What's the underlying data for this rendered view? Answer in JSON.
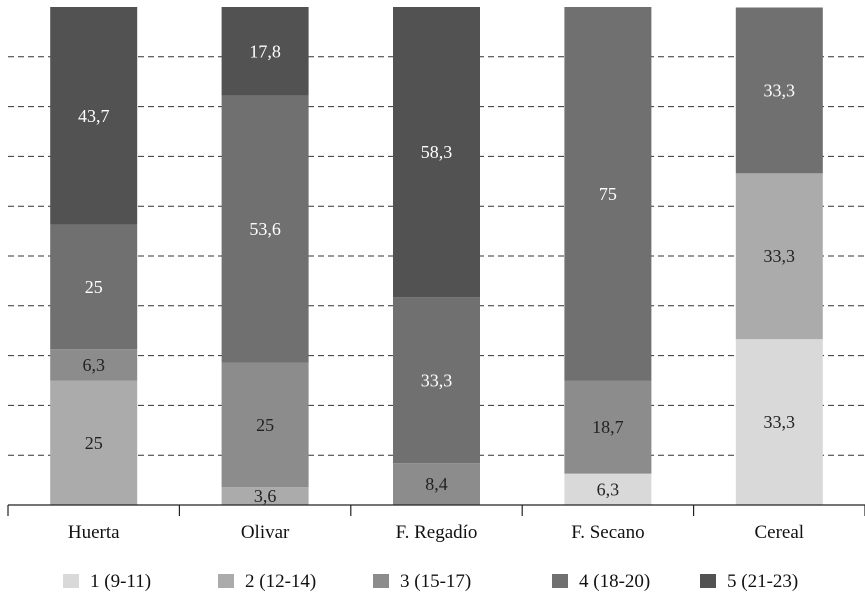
{
  "chart_data": {
    "type": "bar",
    "stacked": true,
    "percent": true,
    "title": "",
    "xlabel": "",
    "ylabel": "",
    "ylim": [
      0,
      100
    ],
    "grid": true,
    "legend_position": "bottom",
    "categories": [
      "Huerta",
      "Olivar",
      "F. Regadío",
      "F. Secano",
      "Cereal"
    ],
    "series": [
      {
        "name": "1 (9-11)",
        "color": "#d9d9d9",
        "label_color": "#222222",
        "values": [
          0,
          0,
          0,
          6.3,
          33.3
        ],
        "labels": [
          "",
          "",
          "",
          "6,3",
          "33,3"
        ]
      },
      {
        "name": "2 (12-14)",
        "color": "#ababab",
        "label_color": "#222222",
        "values": [
          25,
          3.6,
          0,
          0,
          33.3
        ],
        "labels": [
          "25",
          "3,6",
          "",
          "",
          "33,3"
        ]
      },
      {
        "name": "3 (15-17)",
        "color": "#8c8c8c",
        "label_color": "#222222",
        "values": [
          6.3,
          25,
          8.4,
          18.7,
          0
        ],
        "labels": [
          "6,3",
          "25",
          "8,4",
          "18,7",
          ""
        ]
      },
      {
        "name": "4 (18-20)",
        "color": "#707070",
        "label_color": "#ffffff",
        "values": [
          25,
          53.6,
          33.3,
          75,
          33.3
        ],
        "labels": [
          "25",
          "53,6",
          "33,3",
          "75",
          "33,3"
        ]
      },
      {
        "name": "5 (21-23)",
        "color": "#525252",
        "label_color": "#ffffff",
        "values": [
          43.7,
          17.8,
          58.3,
          0,
          0
        ],
        "labels": [
          "43,7",
          "17,8",
          "58,3",
          "",
          ""
        ]
      }
    ]
  }
}
